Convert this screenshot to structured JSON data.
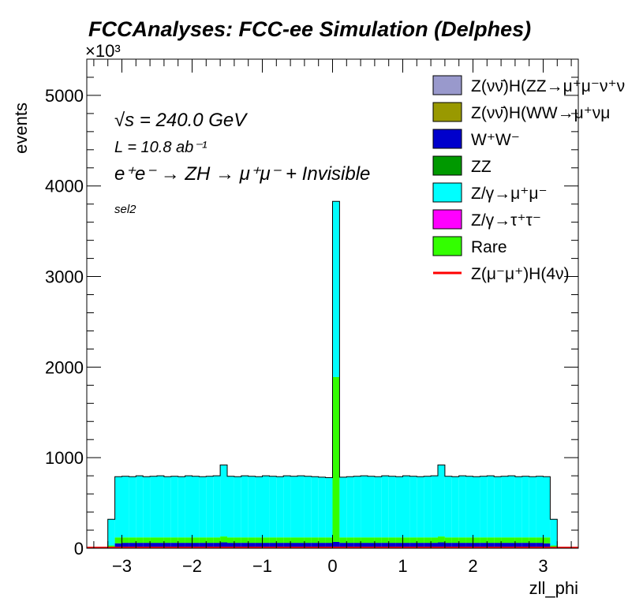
{
  "chart_data": {
    "type": "stacked-histogram",
    "title": "FCCAnalyses: FCC-ee Simulation (Delphes)",
    "xlabel": "zll_phi",
    "ylabel": "events",
    "y_multiplier": "×10³",
    "xlim": [
      -3.5,
      3.5
    ],
    "ylim": [
      0,
      5400
    ],
    "x_ticks": [
      -3,
      -2,
      -1,
      0,
      1,
      2,
      3
    ],
    "x_tick_labels": [
      "−3",
      "−2",
      "−1",
      "0",
      "1",
      "2",
      "3"
    ],
    "y_ticks": [
      0,
      1000,
      2000,
      3000,
      4000,
      5000
    ],
    "y_tick_labels": [
      "0",
      "1000",
      "2000",
      "3000",
      "4000",
      "5000"
    ],
    "bin_width": 0.1,
    "bin_centers": [
      -3.15,
      -3.05,
      -2.95,
      -2.85,
      -2.75,
      -2.65,
      -2.55,
      -2.45,
      -2.35,
      -2.25,
      -2.15,
      -2.05,
      -1.95,
      -1.85,
      -1.75,
      -1.65,
      -1.55,
      -1.45,
      -1.35,
      -1.25,
      -1.15,
      -1.05,
      -0.95,
      -0.85,
      -0.75,
      -0.65,
      -0.55,
      -0.45,
      -0.35,
      -0.25,
      -0.15,
      -0.05,
      0.05,
      0.15,
      0.25,
      0.35,
      0.45,
      0.55,
      0.65,
      0.75,
      0.85,
      0.95,
      1.05,
      1.15,
      1.25,
      1.35,
      1.45,
      1.55,
      1.65,
      1.75,
      1.85,
      1.95,
      2.05,
      2.15,
      2.25,
      2.35,
      2.45,
      2.55,
      2.65,
      2.75,
      2.85,
      2.95,
      3.05,
      3.15
    ],
    "stack_order_bottom_to_top": [
      "W⁺W⁻",
      "Rare",
      "Z/γ→μ⁺μ⁻"
    ],
    "stacked_totals": {
      "W⁺W⁻": [
        10,
        55,
        60,
        60,
        60,
        60,
        60,
        60,
        60,
        60,
        60,
        60,
        60,
        60,
        60,
        60,
        65,
        60,
        60,
        60,
        60,
        60,
        60,
        60,
        60,
        60,
        60,
        60,
        60,
        60,
        60,
        60,
        70,
        60,
        60,
        60,
        60,
        60,
        60,
        60,
        60,
        60,
        60,
        60,
        60,
        60,
        60,
        65,
        60,
        60,
        60,
        60,
        60,
        60,
        60,
        60,
        60,
        60,
        60,
        60,
        60,
        60,
        55,
        10
      ],
      "Rare": [
        30,
        120,
        120,
        120,
        120,
        120,
        120,
        120,
        120,
        120,
        120,
        120,
        120,
        120,
        120,
        120,
        130,
        120,
        120,
        120,
        120,
        120,
        120,
        120,
        120,
        120,
        120,
        120,
        120,
        120,
        120,
        120,
        1890,
        120,
        120,
        120,
        120,
        120,
        120,
        120,
        120,
        120,
        120,
        120,
        120,
        120,
        120,
        130,
        120,
        120,
        120,
        120,
        120,
        120,
        120,
        120,
        120,
        120,
        120,
        120,
        120,
        120,
        120,
        30
      ],
      "Z/γ→μ⁺μ⁻": [
        320,
        790,
        795,
        790,
        800,
        790,
        795,
        800,
        790,
        795,
        790,
        800,
        795,
        790,
        795,
        800,
        920,
        795,
        790,
        800,
        795,
        790,
        800,
        795,
        790,
        800,
        795,
        800,
        795,
        790,
        785,
        780,
        3830,
        785,
        790,
        795,
        800,
        795,
        790,
        800,
        795,
        790,
        800,
        795,
        790,
        795,
        800,
        920,
        795,
        790,
        800,
        795,
        790,
        795,
        800,
        790,
        795,
        800,
        790,
        795,
        790,
        795,
        790,
        320
      ]
    },
    "series": [
      {
        "name": "Z(νν̄)H(ZZ→μ⁺μ⁻ν⁺ν",
        "color": "#9999cc"
      },
      {
        "name": "Z(νν̄)H(WW→μ⁺νμ",
        "color": "#999900"
      },
      {
        "name": "W⁺W⁻",
        "color": "#0000cc"
      },
      {
        "name": "ZZ",
        "color": "#009900"
      },
      {
        "name": "Z/γ→μ⁺μ⁻",
        "color": "#00ffff"
      },
      {
        "name": "Z/γ→τ⁺τ⁻",
        "color": "#ff00ff"
      },
      {
        "name": "Rare",
        "color": "#33ff00"
      },
      {
        "name": "Z(μ⁻μ⁺)H(4ν)",
        "color": "#ff0000",
        "style": "line"
      }
    ],
    "annotations": {
      "sqrt_s": "√s = 240.0 GeV",
      "lumi": "L = 10.8 ab⁻¹",
      "process": "e⁺e⁻ → ZH → μ⁺μ⁻ + Invisible",
      "selection": "sel2"
    },
    "legend_position": "top-right"
  }
}
